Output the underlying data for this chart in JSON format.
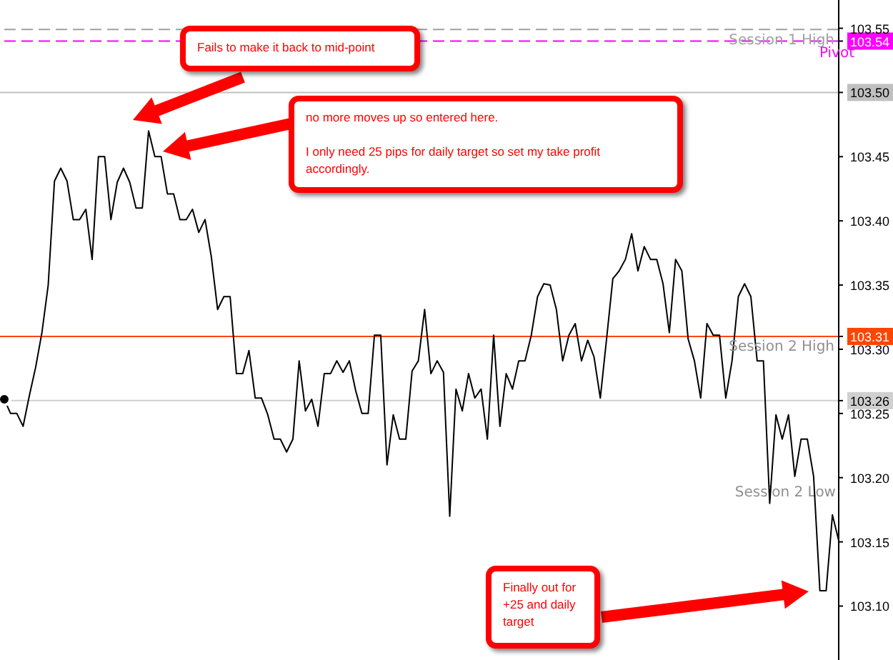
{
  "chart_data": {
    "type": "line",
    "categories": [
      null,
      null,
      null,
      null,
      null,
      null,
      null,
      null,
      null,
      null,
      null,
      null,
      null,
      null,
      null,
      null,
      null,
      null,
      null,
      null,
      null,
      null,
      null,
      null,
      null,
      null,
      null,
      null,
      null,
      null,
      null,
      null,
      null,
      null,
      null,
      null,
      null,
      null,
      null,
      null,
      null,
      null,
      null,
      null,
      null,
      null,
      null,
      null,
      null,
      null,
      null,
      null,
      null,
      null,
      null,
      null,
      null,
      null,
      null,
      null,
      null,
      null,
      null,
      null,
      null,
      null,
      null,
      null,
      null,
      null,
      null,
      null,
      null,
      null,
      null,
      null,
      null,
      null,
      null,
      null,
      null,
      null,
      null,
      null,
      null,
      null,
      null,
      null,
      null,
      null,
      null,
      null,
      null,
      null,
      null,
      null,
      null,
      null,
      null,
      null,
      null,
      null,
      null,
      null,
      null,
      null,
      null,
      null,
      null,
      null,
      null,
      null,
      null,
      null,
      null,
      null,
      null,
      null,
      null,
      null,
      null,
      null,
      null,
      null,
      null,
      null,
      null,
      null,
      null,
      null,
      null,
      null,
      null,
      null
    ],
    "series": [
      {
        "color": "#000000",
        "values": [
          103.261,
          103.25,
          103.25,
          103.24,
          103.264,
          103.286,
          103.313,
          103.35,
          103.431,
          103.441,
          103.431,
          103.401,
          103.401,
          103.409,
          103.37,
          103.45,
          103.45,
          103.401,
          103.43,
          103.441,
          103.43,
          103.41,
          103.41,
          103.47,
          103.45,
          103.45,
          103.421,
          103.421,
          103.401,
          103.401,
          103.409,
          103.391,
          103.401,
          103.372,
          103.331,
          103.341,
          103.341,
          103.281,
          103.281,
          103.299,
          103.262,
          103.262,
          103.249,
          103.23,
          103.23,
          103.22,
          103.23,
          103.291,
          103.252,
          103.261,
          103.24,
          103.281,
          103.281,
          103.291,
          103.282,
          103.291,
          103.268,
          103.25,
          103.25,
          103.311,
          103.311,
          103.21,
          103.249,
          103.23,
          103.23,
          103.283,
          103.291,
          103.331,
          103.281,
          103.291,
          103.282,
          103.17,
          103.269,
          103.252,
          103.281,
          103.262,
          103.269,
          103.23,
          103.311,
          103.24,
          103.281,
          103.269,
          103.291,
          103.291,
          103.311,
          103.341,
          103.351,
          103.35,
          103.331,
          103.291,
          103.311,
          103.32,
          103.291,
          103.307,
          103.294,
          103.262,
          103.308,
          103.355,
          103.361,
          103.37,
          103.39,
          103.361,
          103.38,
          103.37,
          103.37,
          103.351,
          103.313,
          103.37,
          103.361,
          103.308,
          103.291,
          103.262,
          103.32,
          103.311,
          103.311,
          103.262,
          103.291,
          103.341,
          103.351,
          103.341,
          103.291,
          103.291,
          103.18,
          103.249,
          103.23,
          103.249,
          103.201,
          103.23,
          103.23,
          103.201,
          103.112,
          103.112,
          103.171,
          103.151
        ]
      }
    ],
    "ylim": [
      103.058,
      103.572
    ],
    "yticks": [
      {
        "value": 103.1,
        "label": "103.10"
      },
      {
        "value": 103.15,
        "label": "103.15"
      },
      {
        "value": 103.2,
        "label": "103.20"
      },
      {
        "value": 103.25,
        "label": "103.25"
      },
      {
        "value": 103.26,
        "label": "103.26"
      },
      {
        "value": 103.3,
        "label": "103.30"
      },
      {
        "value": 103.31,
        "label": "103.31"
      },
      {
        "value": 103.35,
        "label": "103.35"
      },
      {
        "value": 103.4,
        "label": "103.40"
      },
      {
        "value": 103.45,
        "label": "103.45"
      },
      {
        "value": 103.5,
        "label": "103.50"
      },
      {
        "value": 103.54,
        "label": "103.54"
      },
      {
        "value": 103.55,
        "label": "103.55"
      }
    ],
    "tick_labels": "y",
    "marker": "none",
    "line_style": "solid",
    "ref_lines": [
      {
        "axis": "y",
        "value": 103.549,
        "label": "Session 1 High",
        "color": "#a0a0a0",
        "line_style": "dashed"
      },
      {
        "axis": "y",
        "value": 103.54,
        "label": "Pivot",
        "color": "#ff00ff",
        "line_style": "dashed"
      },
      {
        "axis": "y",
        "value": 103.5,
        "color": "#c0c0c0",
        "line_style": "solid"
      },
      {
        "axis": "y",
        "value": 103.31,
        "label": "Session 2 High",
        "color": "#ff4500",
        "line_style": "solid"
      },
      {
        "axis": "y",
        "value": 103.26,
        "color": "#d0d0d0",
        "line_style": "solid"
      }
    ],
    "annotations": [
      "Fails to make it back to mid-point",
      "no more moves up so entered here.\nI only need 25 pips for daily target so set my take profit accordingly.",
      "Finally out for +25 and daily target",
      "Session 2 Low"
    ]
  }
}
